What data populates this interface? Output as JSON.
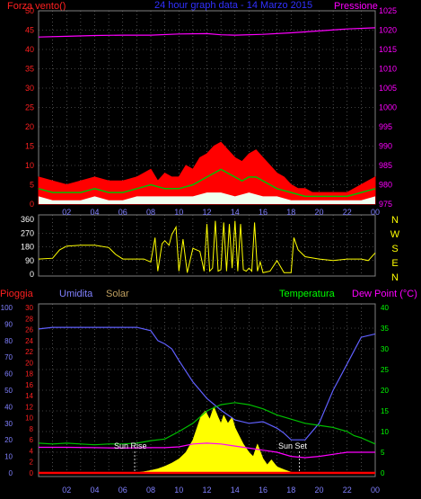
{
  "title": "24 hour graph data - 14 Marzo 2015",
  "colors": {
    "background": "#000000",
    "grid": "#808080",
    "wind_gust": "#ff0000",
    "wind_avg": "#00c000",
    "wind_low": "#f0fff0",
    "pressure": "#ff00ff",
    "direction": "#ffff00",
    "humidity": "#6060ff",
    "temperature": "#00c000",
    "dew_point": "#ff00ff",
    "solar": "#ffff00",
    "rain": "#ff0000",
    "axis_red": "#ff2020",
    "axis_magenta": "#ff00ff",
    "axis_green": "#00ff00",
    "axis_blue": "#8080ff",
    "axis_yellow": "#ffff00",
    "tick_blue": "#8080ff",
    "white": "#ffffff"
  },
  "chart_data": [
    {
      "type": "line",
      "panel": "wind-pressure",
      "title": "24 hour graph data - 14 Marzo 2015",
      "left_axis_label": "Forza vento()",
      "right_axis_label": "Pressione",
      "x_ticks": [
        "02",
        "04",
        "06",
        "08",
        "10",
        "12",
        "14",
        "16",
        "18",
        "20",
        "22",
        "00"
      ],
      "left_ylim": [
        0,
        50
      ],
      "left_ticks": [
        0,
        5,
        10,
        15,
        20,
        25,
        30,
        35,
        40,
        45,
        50
      ],
      "right_ylim": [
        975,
        1025
      ],
      "right_ticks": [
        975,
        980,
        985,
        990,
        995,
        1000,
        1005,
        1010,
        1015,
        1020,
        1025
      ],
      "grid": true,
      "series": [
        {
          "role": "wind_gust",
          "x": [
            0.0,
            1.0,
            2.0,
            3.0,
            4.0,
            5.0,
            6.0,
            7.0,
            8.0,
            8.5,
            9.0,
            9.5,
            10.0,
            10.5,
            11.0,
            11.5,
            12.0,
            12.5,
            13.0,
            13.5,
            14.0,
            14.5,
            15.0,
            15.5,
            16.0,
            16.5,
            17.0,
            17.5,
            18.0,
            18.5,
            19.0,
            19.5,
            20.0,
            21.0,
            22.0,
            23.0,
            24.0
          ],
          "values": [
            7,
            6,
            5,
            6,
            7,
            6,
            6,
            7,
            9,
            6,
            8,
            7,
            7,
            10,
            9,
            12,
            13,
            15,
            16,
            14,
            12,
            11,
            13,
            14,
            12,
            10,
            8,
            7,
            5,
            4,
            4,
            3,
            3,
            3,
            3,
            5,
            7
          ]
        },
        {
          "role": "wind_avg",
          "x": [
            0.0,
            1.0,
            2.0,
            3.0,
            4.0,
            5.0,
            6.0,
            7.0,
            8.0,
            9.0,
            10.0,
            11.0,
            11.5,
            12.0,
            12.5,
            13.0,
            13.5,
            14.0,
            14.5,
            15.0,
            15.5,
            16.0,
            16.5,
            17.0,
            18.0,
            19.0,
            20.0,
            21.0,
            22.0,
            23.0,
            24.0
          ],
          "values": [
            4,
            3,
            3,
            3,
            4,
            3,
            3,
            4,
            5,
            4,
            4,
            5,
            6,
            7,
            8,
            9,
            8,
            7,
            6,
            7,
            7,
            6,
            5,
            4,
            3,
            2,
            2,
            2,
            2,
            3,
            4
          ]
        },
        {
          "role": "wind_low",
          "x": [
            0.0,
            1.0,
            2.0,
            3.0,
            4.0,
            5.0,
            6.0,
            7.0,
            8.0,
            9.0,
            10.0,
            11.0,
            12.0,
            13.0,
            14.0,
            15.0,
            16.0,
            17.0,
            18.0,
            19.0,
            20.0,
            21.0,
            22.0,
            23.0,
            24.0
          ],
          "values": [
            2,
            1,
            1,
            1,
            2,
            1,
            1,
            2,
            2,
            2,
            2,
            2,
            3,
            3,
            2,
            3,
            2,
            2,
            1,
            1,
            1,
            1,
            1,
            1,
            2
          ]
        },
        {
          "role": "pressure",
          "x": [
            0,
            2,
            4,
            6,
            8,
            10,
            12,
            13,
            14,
            16,
            18,
            20,
            22,
            24
          ],
          "values": [
            1018.2,
            1018.4,
            1018.6,
            1018.7,
            1018.7,
            1019.0,
            1019.1,
            1018.8,
            1018.7,
            1018.9,
            1019.3,
            1019.8,
            1020.3,
            1020.6
          ]
        }
      ]
    },
    {
      "type": "line",
      "panel": "wind-direction",
      "x_ticks": [
        "02",
        "04",
        "06",
        "08",
        "10",
        "12",
        "14",
        "16",
        "18",
        "20",
        "22",
        "00"
      ],
      "ylim": [
        0,
        360
      ],
      "left_ticks": [
        0,
        90,
        180,
        270,
        360
      ],
      "right_labels": [
        "N",
        "W",
        "S",
        "E",
        "N"
      ],
      "grid": true,
      "series": [
        {
          "role": "direction",
          "x": [
            0.0,
            1.0,
            1.5,
            2.0,
            3.0,
            4.0,
            5.0,
            5.5,
            6.0,
            7.0,
            7.5,
            8.0,
            8.3,
            8.5,
            8.8,
            9.0,
            9.3,
            9.5,
            9.8,
            10.0,
            10.3,
            10.6,
            11.0,
            11.5,
            11.8,
            12.0,
            12.2,
            12.4,
            12.6,
            12.8,
            13.0,
            13.2,
            13.4,
            13.6,
            13.8,
            14.0,
            14.2,
            14.4,
            14.6,
            14.8,
            15.0,
            15.2,
            15.4,
            15.6,
            15.8,
            16.0,
            16.5,
            17.0,
            17.5,
            18.0,
            18.2,
            18.5,
            19.0,
            20.0,
            21.0,
            22.0,
            23.0,
            23.5,
            24.0
          ],
          "values": [
            100,
            105,
            160,
            185,
            190,
            190,
            175,
            130,
            100,
            100,
            100,
            80,
            240,
            20,
            200,
            220,
            190,
            260,
            310,
            20,
            230,
            10,
            170,
            150,
            20,
            330,
            20,
            40,
            350,
            20,
            30,
            340,
            20,
            330,
            40,
            350,
            20,
            330,
            30,
            20,
            40,
            20,
            340,
            20,
            80,
            10,
            20,
            90,
            10,
            10,
            240,
            160,
            115,
            100,
            90,
            100,
            100,
            90,
            140
          ]
        }
      ]
    },
    {
      "type": "line",
      "panel": "atmosphere",
      "x_ticks": [
        "02",
        "04",
        "06",
        "08",
        "10",
        "12",
        "14",
        "16",
        "18",
        "20",
        "22",
        "00"
      ],
      "legend": [
        "Pioggia",
        "Umidita",
        "Solar",
        "Temperatura",
        "Dew Point (°C)"
      ],
      "annotations": [
        "Sun Rise",
        "Sun Set"
      ],
      "rain_ylim": [
        0,
        30
      ],
      "rain_ticks": [
        0,
        2,
        4,
        6,
        8,
        10,
        12,
        14,
        16,
        18,
        20,
        22,
        24,
        26,
        28,
        30
      ],
      "humidity_ylim": [
        0,
        100
      ],
      "humidity_ticks": [
        0,
        10,
        20,
        30,
        40,
        50,
        60,
        70,
        80,
        90,
        100
      ],
      "temp_ylim": [
        0,
        40
      ],
      "temp_ticks": [
        0,
        5,
        10,
        15,
        20,
        25,
        30,
        35,
        40
      ],
      "sunrise_x": 6.85,
      "sunset_x": 18.6,
      "grid": true,
      "series": [
        {
          "role": "humidity",
          "x": [
            0,
            1,
            2,
            3,
            4,
            5,
            6,
            7,
            8,
            8.5,
            9,
            9.5,
            10,
            11,
            12,
            13,
            14,
            15,
            16,
            17,
            17.5,
            18,
            19,
            20,
            21,
            22,
            22.5,
            23,
            24
          ],
          "values": [
            87,
            88,
            88,
            88,
            88,
            88,
            88,
            88,
            86,
            80,
            78,
            75,
            68,
            55,
            45,
            38,
            32,
            30,
            31,
            27,
            24,
            20,
            20,
            30,
            50,
            66,
            74,
            82,
            84
          ]
        },
        {
          "role": "temperature",
          "x": [
            0,
            1,
            2,
            3,
            4,
            5,
            6,
            7,
            8,
            9,
            10,
            11,
            12,
            13,
            14,
            15,
            16,
            17,
            18,
            19,
            20,
            21,
            22,
            22.5,
            23,
            24
          ],
          "values": [
            7.2,
            7,
            7.2,
            7,
            6.8,
            7,
            7,
            7.2,
            7.8,
            8.2,
            10,
            12,
            15,
            16.5,
            17,
            16.5,
            15.5,
            14,
            13,
            12,
            11.5,
            11,
            10,
            9,
            8.5,
            7
          ]
        },
        {
          "role": "dew_point",
          "x": [
            0,
            2,
            4,
            6,
            8,
            9,
            10,
            11,
            12,
            13,
            14,
            15,
            16,
            17,
            18,
            19,
            20,
            22,
            24
          ],
          "values": [
            6.2,
            6.2,
            6.1,
            6,
            6.1,
            6.1,
            6.3,
            7,
            7.2,
            7,
            6.5,
            6,
            5.5,
            5,
            4,
            3.7,
            4,
            5,
            5
          ]
        },
        {
          "role": "solar",
          "x": [
            6.8,
            7.5,
            8,
            8.5,
            9,
            9.5,
            10,
            10.5,
            11,
            11.3,
            11.6,
            11.9,
            12.2,
            12.5,
            12.8,
            13,
            13.2,
            13.5,
            13.8,
            14,
            14.3,
            14.6,
            15,
            15.3,
            15.6,
            16,
            16.3,
            16.6,
            17,
            17.5,
            18,
            18.6
          ],
          "values": [
            0,
            0.3,
            0.6,
            1,
            1.6,
            2.4,
            3.4,
            5,
            8,
            11,
            14,
            15,
            13,
            16,
            13.5,
            12,
            14,
            12,
            13.5,
            11,
            9,
            7,
            5,
            4,
            7,
            3.5,
            2,
            3.2,
            1.5,
            0.8,
            0.2,
            0
          ]
        },
        {
          "role": "rain",
          "x": [
            0,
            24
          ],
          "values": [
            0,
            0
          ]
        }
      ]
    }
  ]
}
